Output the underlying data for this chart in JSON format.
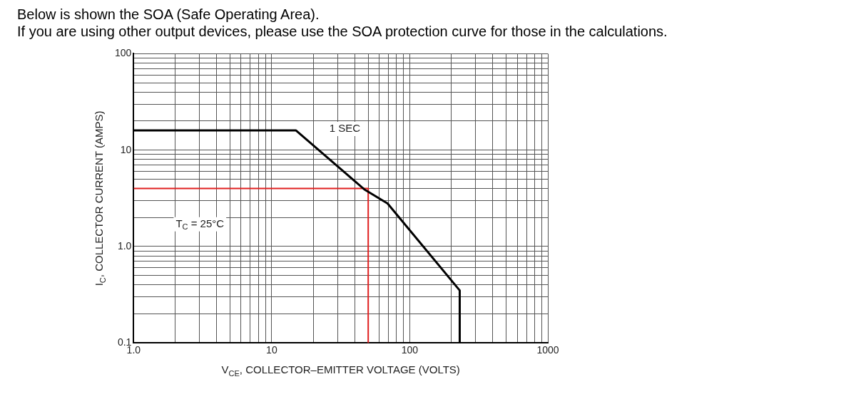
{
  "chart_data": {
    "type": "line",
    "title": "Below is shown the SOA (Safe Operating Area).",
    "subtitle": "If you are using other output devices, please use the SOA protection curve for those in the calculations.",
    "xlabel": "V$_{CE}$, COLLECTOR–EMITTER VOLTAGE (VOLTS)",
    "ylabel": "I$_{C}$, COLLECTOR CURRENT (AMPS)",
    "log": "xy",
    "grid": true,
    "legend": false,
    "marker": "none",
    "line_style": "solid",
    "xlim": [
      1,
      1000
    ],
    "ylim": [
      0.1,
      100
    ],
    "xticks": [
      {
        "value": 1,
        "label": "1.0"
      },
      {
        "value": 2,
        "label": null
      },
      {
        "value": 3,
        "label": null
      },
      {
        "value": 4,
        "label": null
      },
      {
        "value": 5,
        "label": null
      },
      {
        "value": 6,
        "label": null
      },
      {
        "value": 7,
        "label": null
      },
      {
        "value": 8,
        "label": null
      },
      {
        "value": 9,
        "label": null
      },
      10,
      {
        "value": 20,
        "label": null
      },
      {
        "value": 30,
        "label": null
      },
      {
        "value": 40,
        "label": null
      },
      {
        "value": 50,
        "label": null
      },
      {
        "value": 60,
        "label": null
      },
      {
        "value": 70,
        "label": null
      },
      {
        "value": 80,
        "label": null
      },
      {
        "value": 90,
        "label": null
      },
      100,
      {
        "value": 200,
        "label": null
      },
      {
        "value": 300,
        "label": null
      },
      {
        "value": 400,
        "label": null
      },
      {
        "value": 500,
        "label": null
      },
      {
        "value": 600,
        "label": null
      },
      {
        "value": 700,
        "label": null
      },
      {
        "value": 800,
        "label": null
      },
      {
        "value": 900,
        "label": null
      },
      1000
    ],
    "yticks": [
      0.1,
      {
        "value": 0.2,
        "label": null
      },
      {
        "value": 0.3,
        "label": null
      },
      {
        "value": 0.4,
        "label": null
      },
      {
        "value": 0.5,
        "label": null
      },
      {
        "value": 0.6,
        "label": null
      },
      {
        "value": 0.7,
        "label": null
      },
      {
        "value": 0.8,
        "label": null
      },
      {
        "value": 0.9,
        "label": null
      },
      {
        "value": 1,
        "label": "1.0"
      },
      {
        "value": 2,
        "label": null
      },
      {
        "value": 3,
        "label": null
      },
      {
        "value": 4,
        "label": null
      },
      {
        "value": 5,
        "label": null
      },
      {
        "value": 6,
        "label": null
      },
      {
        "value": 7,
        "label": null
      },
      {
        "value": 8,
        "label": null
      },
      {
        "value": 9,
        "label": null
      },
      10,
      {
        "value": 20,
        "label": null
      },
      {
        "value": 30,
        "label": null
      },
      {
        "value": 40,
        "label": null
      },
      {
        "value": 50,
        "label": null
      },
      {
        "value": 60,
        "label": null
      },
      {
        "value": 70,
        "label": null
      },
      {
        "value": 80,
        "label": null
      },
      {
        "value": 90,
        "label": null
      },
      100
    ],
    "series": [
      {
        "color": "#000000",
        "x": [
          1,
          15,
          47,
          69,
          230,
          230
        ],
        "values": [
          16,
          16,
          3.9,
          2.8,
          0.35,
          0.1
        ]
      },
      {
        "color": "#e02020",
        "x": [
          1,
          50,
          50
        ],
        "values": [
          4,
          4,
          0.1
        ]
      }
    ],
    "annotations": [
      "1 SEC",
      "T$_{C}$ = 25°C"
    ]
  }
}
